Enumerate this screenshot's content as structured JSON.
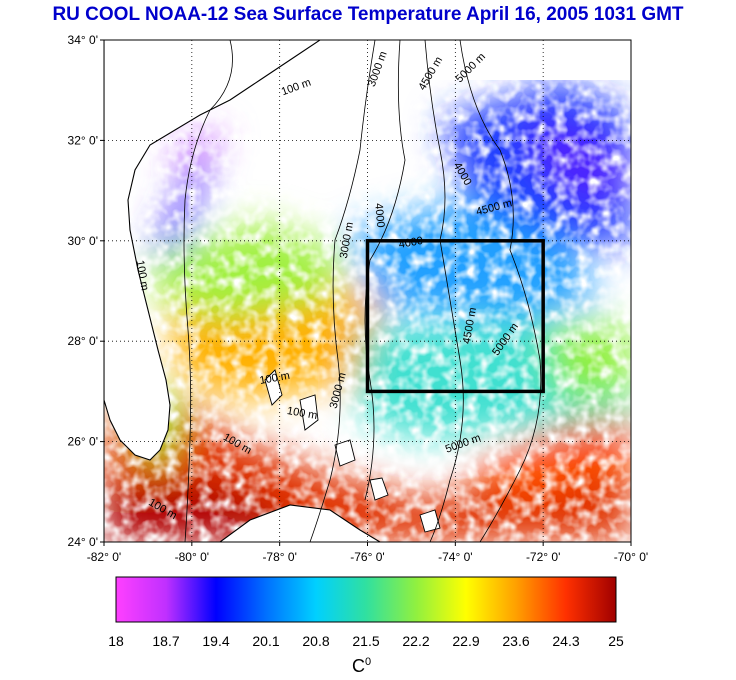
{
  "title": "RU COOL  NOAA-12 Sea Surface Temperature April 16, 2005 1031 GMT",
  "map": {
    "lat_ticks": [
      "34° 0'",
      "32° 0'",
      "30° 0'",
      "28° 0'",
      "26° 0'",
      "24° 0'"
    ],
    "lon_ticks": [
      "-82° 0'",
      "-80° 0'",
      "-78° 0'",
      "-76° 0'",
      "-74° 0'",
      "-72° 0'",
      "-70° 0'"
    ],
    "extent": {
      "lon_min": -82,
      "lon_max": -70,
      "lat_min": 24,
      "lat_max": 34
    },
    "study_box": {
      "lon_min": -76,
      "lon_max": -72,
      "lat_min": 27,
      "lat_max": 30
    },
    "contour_labels": [
      {
        "text": "100 m",
        "lon": -77.6,
        "lat": 33.0,
        "angle": -20
      },
      {
        "text": "3000 m",
        "lon": -75.7,
        "lat": 33.4,
        "angle": -70
      },
      {
        "text": "4500 m",
        "lon": -74.5,
        "lat": 33.3,
        "angle": -60
      },
      {
        "text": "5000 m",
        "lon": -73.6,
        "lat": 33.4,
        "angle": -45
      },
      {
        "text": "100 m",
        "lon": -81.2,
        "lat": 29.3,
        "angle": 80
      },
      {
        "text": "3000 m",
        "lon": -76.4,
        "lat": 30.0,
        "angle": -80
      },
      {
        "text": "4000",
        "lon": -75.8,
        "lat": 30.5,
        "angle": 85
      },
      {
        "text": "4000",
        "lon": -75.0,
        "lat": 29.9,
        "angle": -10
      },
      {
        "text": "4000",
        "lon": -73.9,
        "lat": 31.3,
        "angle": 60
      },
      {
        "text": "4500 m",
        "lon": -73.1,
        "lat": 30.6,
        "angle": -15
      },
      {
        "text": "4500 m",
        "lon": -73.6,
        "lat": 28.3,
        "angle": -80
      },
      {
        "text": "5000 m",
        "lon": -72.8,
        "lat": 28.0,
        "angle": -55
      },
      {
        "text": "3000 m",
        "lon": -76.6,
        "lat": 27.0,
        "angle": -75
      },
      {
        "text": "100 m",
        "lon": -78.1,
        "lat": 27.2,
        "angle": -10
      },
      {
        "text": "100 m",
        "lon": -77.5,
        "lat": 26.5,
        "angle": 10
      },
      {
        "text": "100 m",
        "lon": -79.0,
        "lat": 25.9,
        "angle": 30
      },
      {
        "text": "5000 m",
        "lon": -73.8,
        "lat": 25.9,
        "angle": -20
      },
      {
        "text": "100 m",
        "lon": -80.7,
        "lat": 24.6,
        "angle": 30
      }
    ]
  },
  "colorbar": {
    "min": 18,
    "max": 25,
    "ticks": [
      "18",
      "18.7",
      "19.4",
      "20.1",
      "20.8",
      "21.5",
      "22.2",
      "22.9",
      "23.6",
      "24.3",
      "25"
    ],
    "unit_base": "C",
    "unit_sup": "0",
    "colors": [
      "#ff40ff",
      "#c030ff",
      "#0000ff",
      "#0070ff",
      "#00d0ff",
      "#30e0a0",
      "#90f040",
      "#ffff00",
      "#ffa000",
      "#ff3000",
      "#a00000"
    ]
  },
  "palette": {
    "land": "#ffffff",
    "coast": "#000000",
    "box": "#000000"
  }
}
